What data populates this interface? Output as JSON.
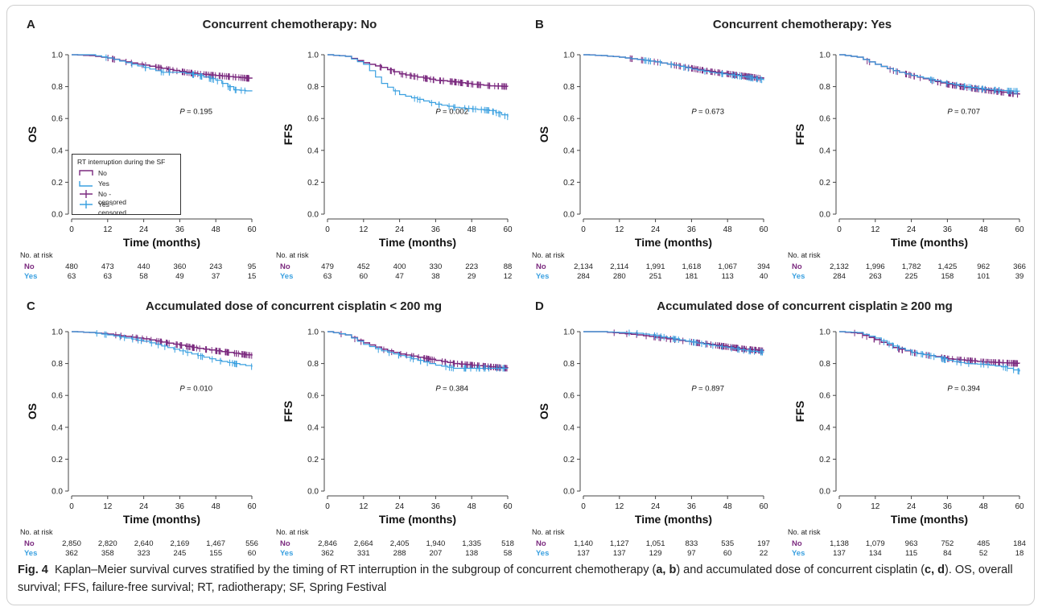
{
  "colors": {
    "no": "#7b2a7f",
    "yes": "#3aa0e0"
  },
  "figure": {
    "caption_label": "Fig. 4",
    "caption_pre": "Kaplan–Meier survival curves stratified by the timing of RT interruption in the subgroup of concurrent chemotherapy (",
    "caption_ab": "a, b",
    "caption_mid": ") and accumulated dose of concurrent cisplatin (",
    "caption_cd": "c, d",
    "caption_post": "). OS, overall survival; FFS, failure-free survival; RT, radiotherapy; SF, Spring Festival"
  },
  "panels": [
    {
      "letter": "A",
      "title": "Concurrent chemotherapy: No"
    },
    {
      "letter": "B",
      "title": "Concurrent chemotherapy: Yes"
    },
    {
      "letter": "C",
      "title": "Accumulated dose of concurrent cisplatin < 200 mg"
    },
    {
      "letter": "D",
      "title": "Accumulated dose of concurrent cisplatin ≥ 200 mg"
    }
  ],
  "risk_table": {
    "header": "No. at risk",
    "no_label": "No",
    "yes_label": "Yes"
  },
  "legend": {
    "title": "RT interruption during the SF",
    "items": [
      "No",
      "Yes",
      "No - censored",
      "Yes - censored"
    ]
  },
  "chart_data": [
    {
      "type": "line",
      "panel": "A",
      "ylabel": "OS",
      "xlabel": "Time (months)",
      "xticks": [
        0,
        12,
        24,
        36,
        48,
        60
      ],
      "yticks": [
        0.0,
        0.2,
        0.4,
        0.6,
        0.8,
        1.0
      ],
      "xlim": [
        0,
        60
      ],
      "ylim": [
        0,
        1
      ],
      "p_label": "P",
      "p_value": "= 0.195",
      "legend": "bottom-left",
      "series": [
        {
          "name": "No",
          "x": [
            0,
            6,
            12,
            18,
            24,
            30,
            36,
            42,
            48,
            54,
            60
          ],
          "y": [
            1.0,
            0.995,
            0.98,
            0.955,
            0.935,
            0.915,
            0.895,
            0.88,
            0.87,
            0.86,
            0.85
          ]
        },
        {
          "name": "Yes",
          "x": [
            0,
            6,
            12,
            18,
            24,
            30,
            36,
            42,
            48,
            54,
            60
          ],
          "y": [
            1.0,
            1.0,
            0.98,
            0.95,
            0.92,
            0.89,
            0.89,
            0.87,
            0.84,
            0.78,
            0.77
          ]
        }
      ],
      "risk_no": [
        "480",
        "473",
        "440",
        "360",
        "243",
        "95"
      ],
      "risk_yes": [
        "63",
        "63",
        "58",
        "49",
        "37",
        "15"
      ]
    },
    {
      "type": "line",
      "panel": "A",
      "ylabel": "FFS",
      "xlabel": "Time (months)",
      "xticks": [
        0,
        12,
        24,
        36,
        48,
        60
      ],
      "yticks": [
        0.0,
        0.2,
        0.4,
        0.6,
        0.8,
        1.0
      ],
      "xlim": [
        0,
        60
      ],
      "ylim": [
        0,
        1
      ],
      "p_label": "P",
      "p_value": "= 0.002",
      "series": [
        {
          "name": "No",
          "x": [
            0,
            6,
            12,
            18,
            24,
            30,
            36,
            42,
            48,
            54,
            60
          ],
          "y": [
            1.0,
            0.99,
            0.95,
            0.92,
            0.88,
            0.86,
            0.84,
            0.83,
            0.815,
            0.805,
            0.8
          ]
        },
        {
          "name": "Yes",
          "x": [
            0,
            6,
            12,
            18,
            24,
            30,
            36,
            42,
            48,
            54,
            60
          ],
          "y": [
            1.0,
            0.99,
            0.94,
            0.82,
            0.75,
            0.72,
            0.69,
            0.67,
            0.66,
            0.65,
            0.61
          ]
        }
      ],
      "risk_no": [
        "479",
        "452",
        "400",
        "330",
        "223",
        "88"
      ],
      "risk_yes": [
        "63",
        "60",
        "47",
        "38",
        "29",
        "12"
      ]
    },
    {
      "type": "line",
      "panel": "B",
      "ylabel": "OS",
      "xlabel": "Time (months)",
      "xticks": [
        0,
        12,
        24,
        36,
        48,
        60
      ],
      "yticks": [
        0.0,
        0.2,
        0.4,
        0.6,
        0.8,
        1.0
      ],
      "xlim": [
        0,
        60
      ],
      "ylim": [
        0,
        1
      ],
      "p_label": "P",
      "p_value": "= 0.673",
      "series": [
        {
          "name": "No",
          "x": [
            0,
            6,
            12,
            18,
            24,
            30,
            36,
            42,
            48,
            54,
            60
          ],
          "y": [
            1.0,
            0.995,
            0.985,
            0.97,
            0.955,
            0.935,
            0.915,
            0.895,
            0.88,
            0.865,
            0.85
          ]
        },
        {
          "name": "Yes",
          "x": [
            0,
            6,
            12,
            18,
            24,
            30,
            36,
            42,
            48,
            54,
            60
          ],
          "y": [
            1.0,
            0.995,
            0.985,
            0.97,
            0.955,
            0.935,
            0.91,
            0.89,
            0.875,
            0.86,
            0.84
          ]
        }
      ],
      "risk_no": [
        "2,134",
        "2,114",
        "1,991",
        "1,618",
        "1,067",
        "394"
      ],
      "risk_yes": [
        "284",
        "280",
        "251",
        "181",
        "113",
        "40"
      ]
    },
    {
      "type": "line",
      "panel": "B",
      "ylabel": "FFS",
      "xlabel": "Time (months)",
      "xticks": [
        0,
        12,
        24,
        36,
        48,
        60
      ],
      "yticks": [
        0.0,
        0.2,
        0.4,
        0.6,
        0.8,
        1.0
      ],
      "xlim": [
        0,
        60
      ],
      "ylim": [
        0,
        1
      ],
      "p_label": "P",
      "p_value": "= 0.707",
      "series": [
        {
          "name": "No",
          "x": [
            0,
            6,
            12,
            18,
            24,
            30,
            36,
            42,
            48,
            54,
            60
          ],
          "y": [
            1.0,
            0.985,
            0.94,
            0.9,
            0.87,
            0.84,
            0.815,
            0.795,
            0.78,
            0.765,
            0.75
          ]
        },
        {
          "name": "Yes",
          "x": [
            0,
            6,
            12,
            18,
            24,
            30,
            36,
            42,
            48,
            54,
            60
          ],
          "y": [
            1.0,
            0.985,
            0.94,
            0.9,
            0.87,
            0.845,
            0.82,
            0.8,
            0.785,
            0.775,
            0.77
          ]
        }
      ],
      "risk_no": [
        "2,132",
        "1,996",
        "1,782",
        "1,425",
        "962",
        "366"
      ],
      "risk_yes": [
        "284",
        "263",
        "225",
        "158",
        "101",
        "39"
      ]
    },
    {
      "type": "line",
      "panel": "C",
      "ylabel": "OS",
      "xlabel": "Time (months)",
      "xticks": [
        0,
        12,
        24,
        36,
        48,
        60
      ],
      "yticks": [
        0.0,
        0.2,
        0.4,
        0.6,
        0.8,
        1.0
      ],
      "xlim": [
        0,
        60
      ],
      "ylim": [
        0,
        1
      ],
      "p_label": "P",
      "p_value": "= 0.010",
      "series": [
        {
          "name": "No",
          "x": [
            0,
            6,
            12,
            18,
            24,
            30,
            36,
            42,
            48,
            54,
            60
          ],
          "y": [
            1.0,
            0.995,
            0.985,
            0.97,
            0.955,
            0.935,
            0.915,
            0.895,
            0.88,
            0.865,
            0.85
          ]
        },
        {
          "name": "Yes",
          "x": [
            0,
            6,
            12,
            18,
            24,
            30,
            36,
            42,
            48,
            54,
            60
          ],
          "y": [
            1.0,
            0.995,
            0.98,
            0.96,
            0.94,
            0.91,
            0.88,
            0.85,
            0.82,
            0.8,
            0.78
          ]
        }
      ],
      "risk_no": [
        "2,850",
        "2,820",
        "2,640",
        "2,169",
        "1,467",
        "556"
      ],
      "risk_yes": [
        "362",
        "358",
        "323",
        "245",
        "155",
        "60"
      ]
    },
    {
      "type": "line",
      "panel": "C",
      "ylabel": "FFS",
      "xlabel": "Time (months)",
      "xticks": [
        0,
        12,
        24,
        36,
        48,
        60
      ],
      "yticks": [
        0.0,
        0.2,
        0.4,
        0.6,
        0.8,
        1.0
      ],
      "xlim": [
        0,
        60
      ],
      "ylim": [
        0,
        1
      ],
      "p_label": "P",
      "p_value": "= 0.384",
      "series": [
        {
          "name": "No",
          "x": [
            0,
            6,
            12,
            18,
            24,
            30,
            36,
            42,
            48,
            54,
            60
          ],
          "y": [
            1.0,
            0.98,
            0.93,
            0.89,
            0.86,
            0.84,
            0.82,
            0.8,
            0.79,
            0.78,
            0.77
          ]
        },
        {
          "name": "Yes",
          "x": [
            0,
            6,
            12,
            18,
            24,
            30,
            36,
            42,
            48,
            54,
            60
          ],
          "y": [
            1.0,
            0.98,
            0.92,
            0.88,
            0.85,
            0.82,
            0.79,
            0.77,
            0.77,
            0.77,
            0.77
          ]
        }
      ],
      "risk_no": [
        "2,846",
        "2,664",
        "2,405",
        "1,940",
        "1,335",
        "518"
      ],
      "risk_yes": [
        "362",
        "331",
        "288",
        "207",
        "138",
        "58"
      ]
    },
    {
      "type": "line",
      "panel": "D",
      "ylabel": "OS",
      "xlabel": "Time (months)",
      "xticks": [
        0,
        12,
        24,
        36,
        48,
        60
      ],
      "yticks": [
        0.0,
        0.2,
        0.4,
        0.6,
        0.8,
        1.0
      ],
      "xlim": [
        0,
        60
      ],
      "ylim": [
        0,
        1
      ],
      "p_label": "P",
      "p_value": "= 0.897",
      "series": [
        {
          "name": "No",
          "x": [
            0,
            6,
            12,
            18,
            24,
            30,
            36,
            42,
            48,
            54,
            60
          ],
          "y": [
            1.0,
            1.0,
            0.99,
            0.98,
            0.965,
            0.95,
            0.935,
            0.92,
            0.905,
            0.89,
            0.88
          ]
        },
        {
          "name": "Yes",
          "x": [
            0,
            6,
            12,
            18,
            24,
            30,
            36,
            42,
            48,
            54,
            60
          ],
          "y": [
            1.0,
            1.0,
            0.995,
            0.99,
            0.975,
            0.955,
            0.935,
            0.915,
            0.9,
            0.88,
            0.87
          ]
        }
      ],
      "risk_no": [
        "1,140",
        "1,127",
        "1,051",
        "833",
        "535",
        "197"
      ],
      "risk_yes": [
        "137",
        "137",
        "129",
        "97",
        "60",
        "22"
      ]
    },
    {
      "type": "line",
      "panel": "D",
      "ylabel": "FFS",
      "xlabel": "Time (months)",
      "xticks": [
        0,
        12,
        24,
        36,
        48,
        60
      ],
      "yticks": [
        0.0,
        0.2,
        0.4,
        0.6,
        0.8,
        1.0
      ],
      "xlim": [
        0,
        60
      ],
      "ylim": [
        0,
        1
      ],
      "p_label": "P",
      "p_value": "= 0.394",
      "series": [
        {
          "name": "No",
          "x": [
            0,
            6,
            12,
            18,
            24,
            30,
            36,
            42,
            48,
            54,
            60
          ],
          "y": [
            1.0,
            0.99,
            0.95,
            0.9,
            0.87,
            0.85,
            0.83,
            0.82,
            0.81,
            0.805,
            0.8
          ]
        },
        {
          "name": "Yes",
          "x": [
            0,
            6,
            12,
            18,
            24,
            30,
            36,
            42,
            48,
            54,
            60
          ],
          "y": [
            1.0,
            0.995,
            0.96,
            0.91,
            0.87,
            0.85,
            0.82,
            0.8,
            0.795,
            0.78,
            0.75
          ]
        }
      ],
      "risk_no": [
        "1,138",
        "1,079",
        "963",
        "752",
        "485",
        "184"
      ],
      "risk_yes": [
        "137",
        "134",
        "115",
        "84",
        "52",
        "18"
      ]
    }
  ]
}
